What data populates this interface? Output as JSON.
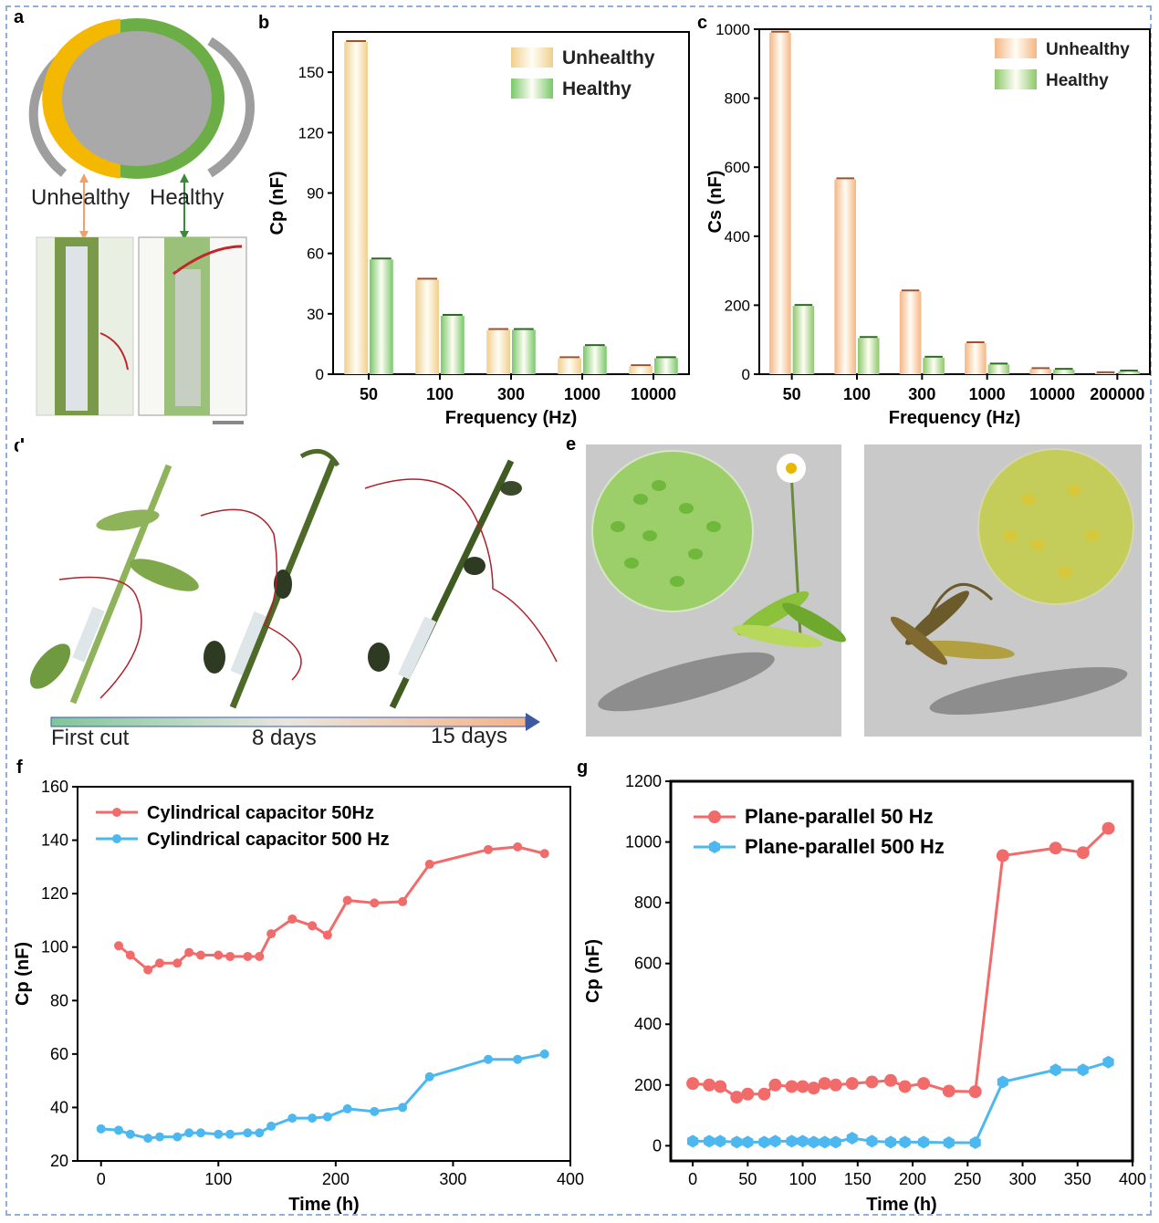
{
  "panel_labels": {
    "a": "a",
    "b": "b",
    "c": "c",
    "d": "d",
    "e": "e",
    "f": "f",
    "g": "g"
  },
  "panel_a": {
    "unhealthy_label": "Unhealthy",
    "healthy_label": "Healthy",
    "colors": {
      "unhealthy": "#f5b800",
      "healthy": "#6cae46",
      "core": "#a9a9a9",
      "electrode": "#9e9e9e"
    }
  },
  "panel_d": {
    "timeline_labels": [
      "First cut",
      "8 days",
      "15 days"
    ]
  },
  "chart_data": [
    {
      "id": "b",
      "type": "bar",
      "categories": [
        "50",
        "100",
        "300",
        "1000",
        "10000"
      ],
      "series": [
        {
          "name": "Unhealthy",
          "values": [
            165,
            47,
            22,
            8,
            4
          ],
          "color": "#f0cf8e"
        },
        {
          "name": "Healthy",
          "values": [
            57,
            29,
            22,
            14,
            8
          ],
          "color": "#79c86a"
        }
      ],
      "xlabel": "Frequency (Hz)",
      "ylabel": "Cp (nF)",
      "ylim": [
        0,
        170
      ],
      "yticks": [
        "0",
        "30",
        "60",
        "90",
        "120",
        "150"
      ],
      "legend": "top-right"
    },
    {
      "id": "c",
      "type": "bar",
      "categories": [
        "50",
        "100",
        "300",
        "1000",
        "10000",
        "200000"
      ],
      "series": [
        {
          "name": "Unhealthy",
          "values": [
            990,
            565,
            240,
            90,
            15,
            3
          ],
          "color": "#f5b684"
        },
        {
          "name": "Healthy",
          "values": [
            198,
            105,
            48,
            28,
            13,
            8
          ],
          "color": "#8dc86a"
        }
      ],
      "xlabel": "Frequency (Hz)",
      "ylabel": "Cs (nF)",
      "ylim": [
        0,
        1000
      ],
      "yticks": [
        "0",
        "200",
        "400",
        "600",
        "800",
        "1000"
      ],
      "legend": "top-right"
    },
    {
      "id": "f",
      "type": "line",
      "xlabel": "Time (h)",
      "ylabel": "Cp (nF)",
      "xlim": [
        -20,
        400
      ],
      "ylim": [
        20,
        160
      ],
      "xticks": [
        "0",
        "100",
        "200",
        "300",
        "400"
      ],
      "yticks": [
        "20",
        "40",
        "60",
        "80",
        "100",
        "120",
        "140",
        "160"
      ],
      "legend": "top-left",
      "series": [
        {
          "name": "Cylindrical capacitor 50Hz",
          "color": "#f26b6b",
          "x": [
            15,
            25,
            40,
            50,
            65,
            75,
            85,
            100,
            110,
            125,
            135,
            145,
            163,
            180,
            193,
            210,
            233,
            257,
            280,
            330,
            355,
            378
          ],
          "y": [
            100.5,
            97,
            91.5,
            94,
            94,
            98,
            97,
            97,
            96.5,
            96.5,
            96.5,
            105,
            110.5,
            108,
            104.5,
            117.5,
            116.5,
            117,
            131,
            136.5,
            137.5,
            135
          ]
        },
        {
          "name": "Cylindrical capacitor 500 Hz",
          "color": "#4db8f0",
          "x": [
            0,
            15,
            25,
            40,
            50,
            65,
            75,
            85,
            100,
            110,
            125,
            135,
            145,
            163,
            180,
            193,
            210,
            233,
            257,
            280,
            330,
            355,
            378
          ],
          "y": [
            32,
            31.5,
            30,
            28.5,
            29,
            29,
            30.5,
            30.5,
            30,
            30,
            30.5,
            30.5,
            33,
            36,
            36,
            36.5,
            39.5,
            38.5,
            40,
            51.5,
            58,
            58,
            60
          ]
        }
      ]
    },
    {
      "id": "g",
      "type": "line",
      "xlabel": "Time (h)",
      "ylabel": "Cp (nF)",
      "xlim": [
        -20,
        400
      ],
      "ylim": [
        -50,
        1200
      ],
      "xticks": [
        "0",
        "50",
        "100",
        "150",
        "200",
        "250",
        "300",
        "350",
        "400"
      ],
      "yticks": [
        "0",
        "200",
        "400",
        "600",
        "800",
        "1000",
        "1200"
      ],
      "legend": "top-left",
      "series": [
        {
          "name": "Plane-parallel 50 Hz",
          "color": "#f26b6b",
          "x": [
            0,
            15,
            25,
            40,
            50,
            65,
            75,
            90,
            100,
            110,
            120,
            130,
            145,
            163,
            180,
            193,
            210,
            233,
            257,
            282,
            330,
            355,
            378
          ],
          "y": [
            205,
            200,
            195,
            160,
            170,
            170,
            200,
            195,
            195,
            190,
            205,
            200,
            205,
            210,
            215,
            195,
            205,
            180,
            178,
            955,
            980,
            965,
            1045
          ]
        },
        {
          "name": "Plane-parallel 500 Hz",
          "color": "#4db8f0",
          "x": [
            0,
            15,
            25,
            40,
            50,
            65,
            75,
            90,
            100,
            110,
            120,
            130,
            145,
            163,
            180,
            193,
            210,
            233,
            257,
            282,
            330,
            355,
            378
          ],
          "y": [
            15,
            15,
            15,
            12,
            12,
            12,
            15,
            15,
            15,
            12,
            12,
            12,
            25,
            15,
            12,
            12,
            12,
            10,
            10,
            210,
            250,
            250,
            275
          ]
        }
      ]
    }
  ]
}
